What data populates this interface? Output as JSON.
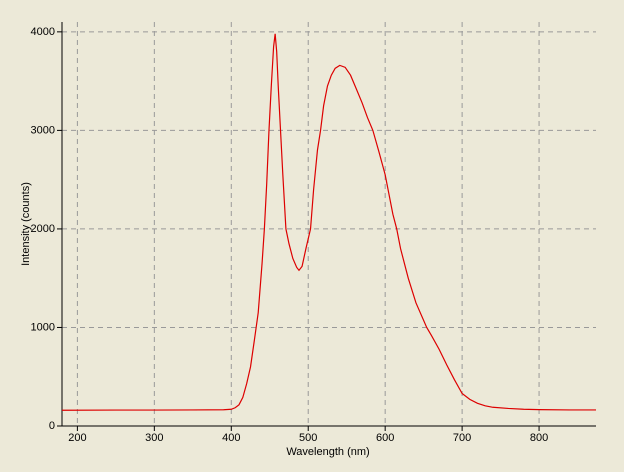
{
  "chart_data": {
    "type": "line",
    "xlabel": "Wavelength (nm)",
    "ylabel": "Intensity (counts)",
    "x": [
      180,
      250,
      300,
      350,
      390,
      400,
      405,
      410,
      415,
      420,
      425,
      430,
      435,
      440,
      443,
      446,
      449,
      452,
      455,
      457,
      459,
      461,
      464,
      467,
      471,
      475,
      480,
      485,
      488,
      492,
      497,
      503,
      507,
      512,
      516,
      520,
      525,
      530,
      535,
      541,
      548,
      555,
      562,
      570,
      577,
      584,
      592,
      600,
      610,
      615,
      620,
      630,
      640,
      654,
      660,
      670,
      680,
      690,
      700,
      710,
      720,
      730,
      740,
      760,
      780,
      800,
      840,
      874
    ],
    "series": [
      {
        "name": "Intensity",
        "color": "#dd0000",
        "values": [
          160,
          162,
          162,
          163,
          165,
          170,
          185,
          215,
          290,
          430,
          600,
          870,
          1150,
          1650,
          2000,
          2450,
          3000,
          3450,
          3850,
          3980,
          3800,
          3450,
          3000,
          2550,
          2000,
          1850,
          1700,
          1610,
          1580,
          1620,
          1800,
          2000,
          2400,
          2800,
          3000,
          3250,
          3450,
          3560,
          3630,
          3660,
          3640,
          3560,
          3430,
          3280,
          3130,
          3000,
          2780,
          2550,
          2150,
          2000,
          1800,
          1500,
          1250,
          1000,
          920,
          780,
          620,
          470,
          330,
          270,
          230,
          205,
          190,
          178,
          170,
          166,
          163,
          163
        ]
      }
    ],
    "xlim": [
      180,
      874
    ],
    "xticks": [
      200,
      300,
      400,
      500,
      600,
      700,
      800
    ],
    "ylim": [
      0,
      4100
    ],
    "yticks": [
      0,
      1000,
      2000,
      3000,
      4000
    ],
    "grid": true
  }
}
